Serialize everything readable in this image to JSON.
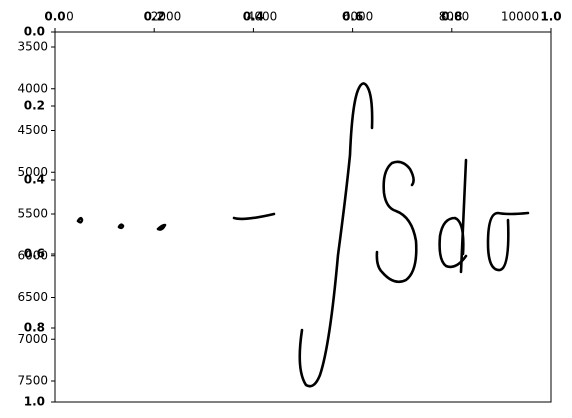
{
  "axes": {
    "left_labels": [
      "3500",
      "4000",
      "4500",
      "5000",
      "5500",
      "6000",
      "6500",
      "7000",
      "7500"
    ],
    "left_fraction_labels": [
      "0.0",
      "0.2",
      "0.4",
      "0.6",
      "0.8",
      "1.0"
    ],
    "top_labels": [
      "0.0",
      "0.2",
      "0.4",
      "0.6",
      "0.8",
      "1.0"
    ],
    "top_number_labels": [
      "0",
      "2000",
      "4000",
      "6000",
      "8000",
      "10000"
    ]
  }
}
